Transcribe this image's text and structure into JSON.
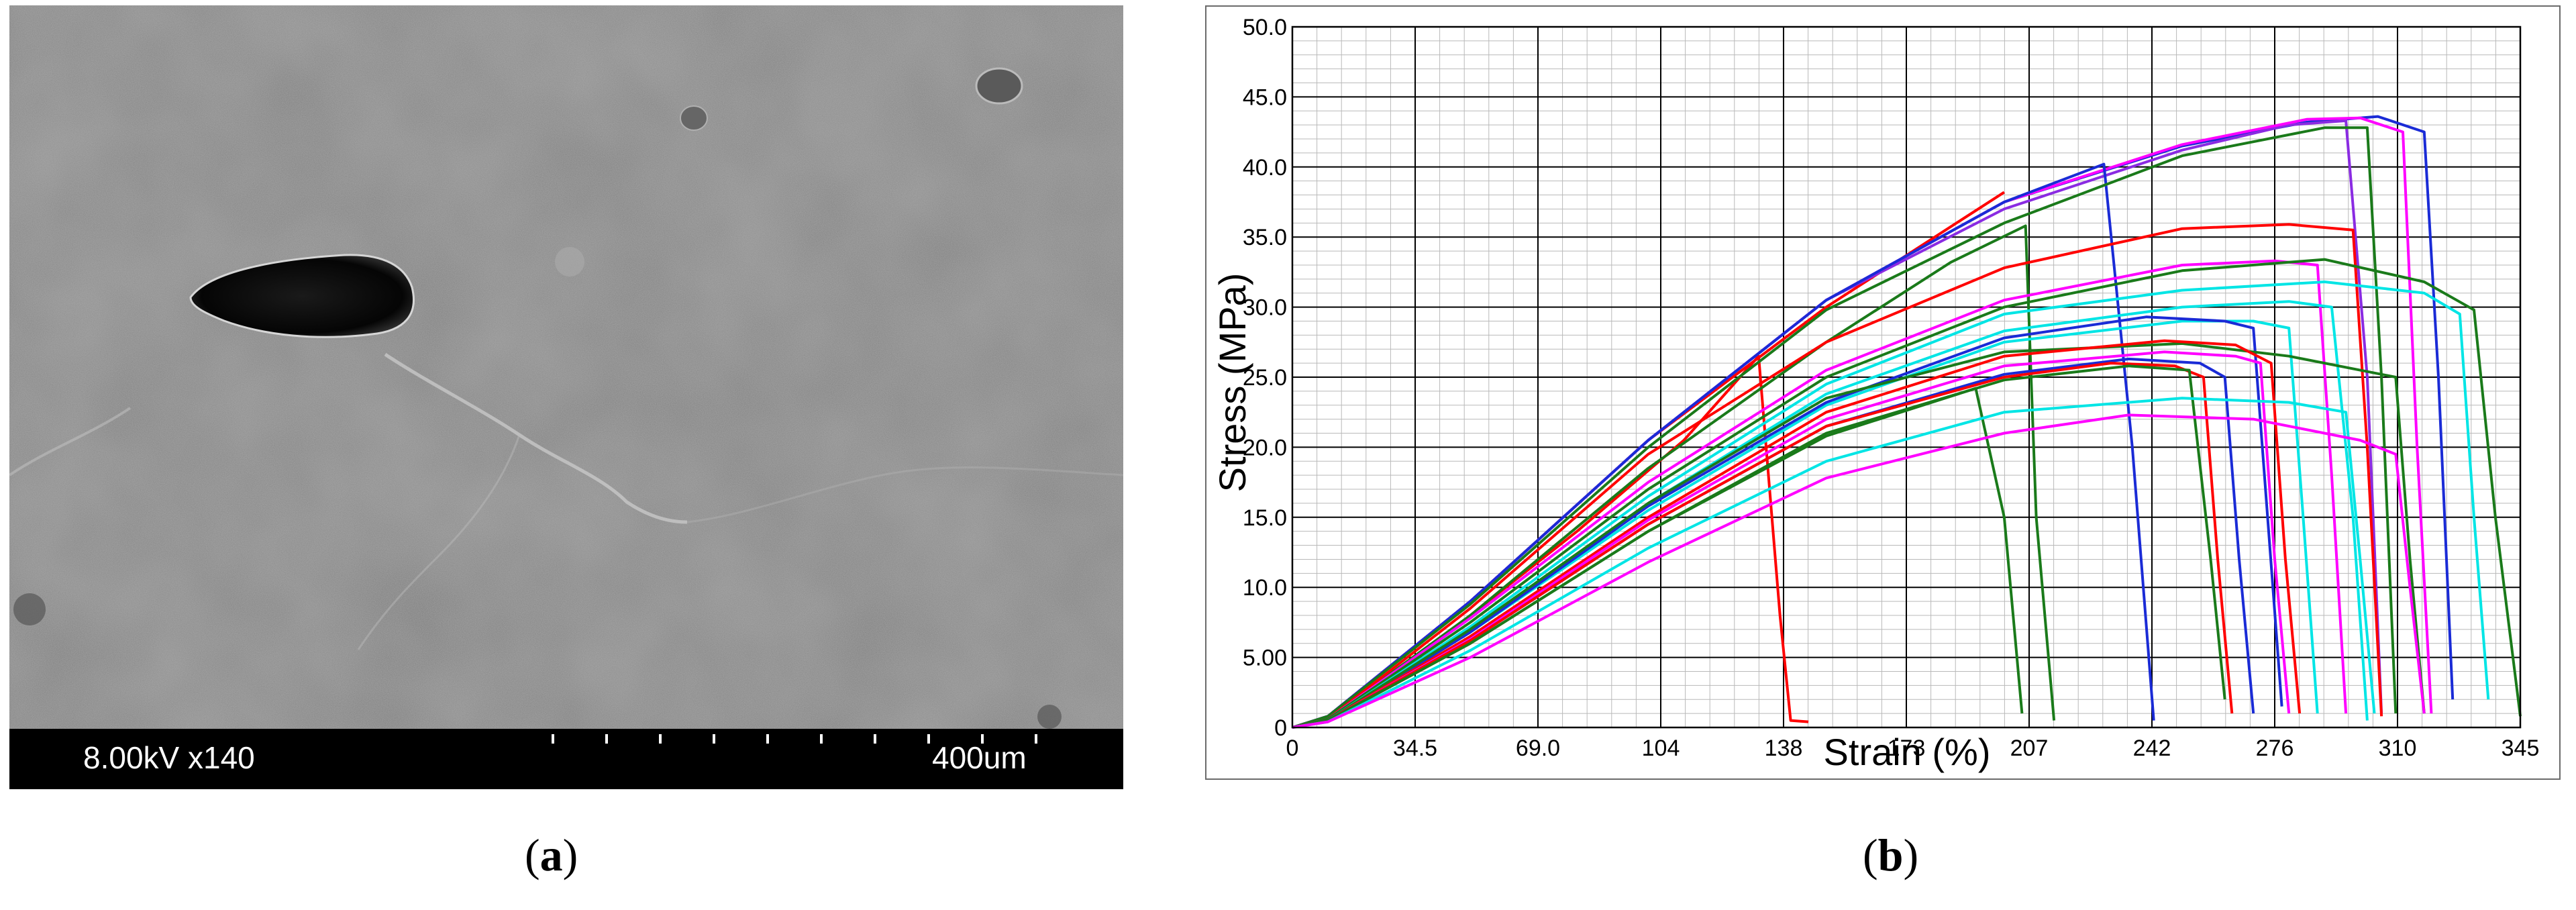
{
  "figure": {
    "panel_a": {
      "label_open": "(",
      "label_letter": "a",
      "label_close": ")",
      "sem": {
        "voltage_magnification": "8.00kV x140",
        "scale_bar": "400um",
        "background_color": "#7f7f7f",
        "databar_color": "#000000"
      }
    },
    "panel_b": {
      "label_open": "(",
      "label_letter": "b",
      "label_close": ")"
    }
  },
  "chart_data": {
    "type": "line",
    "xlabel": "Strain (%)",
    "ylabel": "Stress (MPa)",
    "xlim": [
      0,
      345
    ],
    "ylim": [
      0,
      50
    ],
    "x_ticks": [
      "0",
      "34.5",
      "69.0",
      "104",
      "138",
      "173",
      "207",
      "242",
      "276",
      "310",
      "345"
    ],
    "x_tick_values": [
      0,
      34.5,
      69,
      103.5,
      138,
      172.5,
      207,
      241.5,
      276,
      310.5,
      345
    ],
    "y_ticks": [
      "0",
      "5.00",
      "10.0",
      "15.0",
      "20.0",
      "25.0",
      "30.0",
      "35.0",
      "40.0",
      "45.0",
      "50.0"
    ],
    "y_tick_values": [
      0,
      5,
      10,
      15,
      20,
      25,
      30,
      35,
      40,
      45,
      50
    ],
    "grid": "on (major and minor)",
    "legend": "none",
    "series": [
      {
        "color": "#ff0000",
        "points": [
          [
            0,
            0
          ],
          [
            10,
            0.5
          ],
          [
            40,
            6.0
          ],
          [
            80,
            14.0
          ],
          [
            110,
            20.5
          ],
          [
            131,
            26.5
          ],
          [
            137,
            8.0
          ],
          [
            140,
            0.5
          ],
          [
            145,
            0.4
          ]
        ]
      },
      {
        "color": "#ff0000",
        "points": [
          [
            0,
            0
          ],
          [
            10,
            0.8
          ],
          [
            50,
            9.0
          ],
          [
            100,
            20.5
          ],
          [
            150,
            30.0
          ],
          [
            200,
            38.2
          ]
        ]
      },
      {
        "color": "#1a2bd6",
        "points": [
          [
            0,
            0
          ],
          [
            10,
            0.8
          ],
          [
            50,
            9.0
          ],
          [
            100,
            20.5
          ],
          [
            150,
            30.5
          ],
          [
            200,
            37.5
          ],
          [
            250,
            41.5
          ],
          [
            285,
            43.2
          ],
          [
            305,
            43.6
          ],
          [
            318,
            42.5
          ],
          [
            322,
            25.0
          ],
          [
            326,
            2.0
          ]
        ]
      },
      {
        "color": "#8a2be2",
        "points": [
          [
            0,
            0
          ],
          [
            10,
            0.8
          ],
          [
            50,
            9.0
          ],
          [
            100,
            20.5
          ],
          [
            150,
            30.5
          ],
          [
            200,
            37.0
          ],
          [
            250,
            41.2
          ],
          [
            280,
            43.0
          ],
          [
            296,
            43.3
          ],
          [
            302,
            25.0
          ],
          [
            306,
            1.0
          ]
        ]
      },
      {
        "color": "#ff00ff",
        "points": [
          [
            0,
            0
          ],
          [
            10,
            0.8
          ],
          [
            50,
            9.0
          ],
          [
            100,
            20.5
          ],
          [
            150,
            30.5
          ],
          [
            200,
            37.5
          ],
          [
            250,
            41.6
          ],
          [
            285,
            43.4
          ],
          [
            300,
            43.5
          ],
          [
            312,
            42.5
          ],
          [
            316,
            20.0
          ],
          [
            320,
            1.0
          ]
        ]
      },
      {
        "color": "#1a2bd6",
        "points": [
          [
            0,
            0
          ],
          [
            10,
            0.8
          ],
          [
            50,
            9.0
          ],
          [
            100,
            20.5
          ],
          [
            150,
            30.5
          ],
          [
            200,
            37.5
          ],
          [
            228,
            40.2
          ],
          [
            236,
            20.0
          ],
          [
            242,
            0.5
          ]
        ]
      },
      {
        "color": "#1a7a1a",
        "points": [
          [
            0,
            0
          ],
          [
            10,
            0.8
          ],
          [
            50,
            8.8
          ],
          [
            100,
            20.0
          ],
          [
            150,
            29.8
          ],
          [
            200,
            36.0
          ],
          [
            250,
            40.8
          ],
          [
            290,
            42.8
          ],
          [
            302,
            42.8
          ],
          [
            306,
            25.0
          ],
          [
            310,
            1.0
          ]
        ]
      },
      {
        "color": "#1a7a1a",
        "points": [
          [
            0,
            0
          ],
          [
            10,
            0.6
          ],
          [
            50,
            8.0
          ],
          [
            100,
            18.5
          ],
          [
            150,
            27.5
          ],
          [
            185,
            33.2
          ],
          [
            206,
            35.8
          ],
          [
            209,
            15.0
          ],
          [
            214,
            0.5
          ]
        ]
      },
      {
        "color": "#ff0000",
        "points": [
          [
            0,
            0
          ],
          [
            10,
            0.6
          ],
          [
            50,
            8.5
          ],
          [
            100,
            19.5
          ],
          [
            150,
            27.5
          ],
          [
            200,
            32.8
          ],
          [
            250,
            35.6
          ],
          [
            280,
            35.9
          ],
          [
            298,
            35.5
          ],
          [
            302,
            20.0
          ],
          [
            306,
            0.8
          ]
        ]
      },
      {
        "color": "#ff00ff",
        "points": [
          [
            0,
            0
          ],
          [
            10,
            0.6
          ],
          [
            50,
            7.8
          ],
          [
            100,
            17.5
          ],
          [
            150,
            25.5
          ],
          [
            200,
            30.5
          ],
          [
            250,
            33.0
          ],
          [
            276,
            33.3
          ],
          [
            288,
            33.0
          ],
          [
            292,
            18.0
          ],
          [
            296,
            1.0
          ]
        ]
      },
      {
        "color": "#1a7a1a",
        "points": [
          [
            0,
            0
          ],
          [
            10,
            0.6
          ],
          [
            50,
            7.5
          ],
          [
            100,
            17.0
          ],
          [
            150,
            25.0
          ],
          [
            200,
            30.0
          ],
          [
            250,
            32.6
          ],
          [
            290,
            33.4
          ],
          [
            318,
            31.8
          ],
          [
            332,
            29.8
          ],
          [
            338,
            15.0
          ],
          [
            345,
            0.8
          ]
        ]
      },
      {
        "color": "#00e5e5",
        "points": [
          [
            0,
            0
          ],
          [
            10,
            0.5
          ],
          [
            50,
            7.2
          ],
          [
            100,
            16.5
          ],
          [
            150,
            24.5
          ],
          [
            200,
            29.5
          ],
          [
            250,
            31.2
          ],
          [
            290,
            31.8
          ],
          [
            318,
            31.0
          ],
          [
            328,
            29.5
          ],
          [
            332,
            15.0
          ],
          [
            336,
            2.0
          ]
        ]
      },
      {
        "color": "#00e5e5",
        "points": [
          [
            0,
            0
          ],
          [
            10,
            0.5
          ],
          [
            50,
            7.0
          ],
          [
            100,
            16.0
          ],
          [
            150,
            23.8
          ],
          [
            200,
            28.3
          ],
          [
            250,
            30.0
          ],
          [
            280,
            30.4
          ],
          [
            292,
            30.0
          ],
          [
            298,
            15.0
          ],
          [
            302,
            0.5
          ]
        ]
      },
      {
        "color": "#00e5e5",
        "points": [
          [
            0,
            0
          ],
          [
            10,
            0.5
          ],
          [
            50,
            6.8
          ],
          [
            100,
            15.5
          ],
          [
            150,
            23.0
          ],
          [
            200,
            27.5
          ],
          [
            250,
            29.0
          ],
          [
            270,
            29.0
          ],
          [
            280,
            28.5
          ],
          [
            284,
            15.0
          ],
          [
            288,
            1.0
          ]
        ]
      },
      {
        "color": "#1a2bd6",
        "points": [
          [
            0,
            0
          ],
          [
            10,
            0.5
          ],
          [
            50,
            6.8
          ],
          [
            100,
            15.8
          ],
          [
            150,
            23.2
          ],
          [
            200,
            27.8
          ],
          [
            240,
            29.3
          ],
          [
            262,
            29.0
          ],
          [
            270,
            28.5
          ],
          [
            274,
            15.0
          ],
          [
            278,
            1.5
          ]
        ]
      },
      {
        "color": "#1a7a1a",
        "points": [
          [
            0,
            0
          ],
          [
            10,
            0.5
          ],
          [
            50,
            7.0
          ],
          [
            100,
            16.0
          ],
          [
            150,
            23.5
          ],
          [
            200,
            26.8
          ],
          [
            250,
            27.4
          ],
          [
            280,
            26.5
          ],
          [
            300,
            25.5
          ],
          [
            310,
            25.0
          ],
          [
            314,
            12.0
          ],
          [
            318,
            1.0
          ]
        ]
      },
      {
        "color": "#ff0000",
        "points": [
          [
            0,
            0
          ],
          [
            10,
            0.5
          ],
          [
            50,
            6.5
          ],
          [
            100,
            15.0
          ],
          [
            150,
            22.5
          ],
          [
            200,
            26.5
          ],
          [
            245,
            27.6
          ],
          [
            265,
            27.3
          ],
          [
            275,
            26.0
          ],
          [
            279,
            12.0
          ],
          [
            283,
            1.0
          ]
        ]
      },
      {
        "color": "#ff00ff",
        "points": [
          [
            0,
            0
          ],
          [
            10,
            0.5
          ],
          [
            50,
            6.3
          ],
          [
            100,
            14.8
          ],
          [
            150,
            22.0
          ],
          [
            200,
            25.8
          ],
          [
            245,
            26.8
          ],
          [
            265,
            26.5
          ],
          [
            272,
            26.0
          ],
          [
            276,
            12.0
          ],
          [
            280,
            1.0
          ]
        ]
      },
      {
        "color": "#1a2bd6",
        "points": [
          [
            0,
            0
          ],
          [
            10,
            0.5
          ],
          [
            50,
            6.2
          ],
          [
            100,
            14.5
          ],
          [
            150,
            21.5
          ],
          [
            200,
            25.2
          ],
          [
            235,
            26.3
          ],
          [
            255,
            26.0
          ],
          [
            262,
            25.0
          ],
          [
            266,
            12.0
          ],
          [
            270,
            1.0
          ]
        ]
      },
      {
        "color": "#ff0000",
        "points": [
          [
            0,
            0
          ],
          [
            10,
            0.5
          ],
          [
            50,
            6.2
          ],
          [
            100,
            14.5
          ],
          [
            150,
            21.5
          ],
          [
            200,
            25.0
          ],
          [
            230,
            26.0
          ],
          [
            248,
            25.8
          ],
          [
            256,
            25.0
          ],
          [
            260,
            12.0
          ],
          [
            264,
            1.0
          ]
        ]
      },
      {
        "color": "#1a7a1a",
        "points": [
          [
            0,
            0
          ],
          [
            10,
            0.5
          ],
          [
            50,
            6.0
          ],
          [
            100,
            14.0
          ],
          [
            150,
            21.0
          ],
          [
            200,
            24.8
          ],
          [
            235,
            25.8
          ],
          [
            252,
            25.5
          ],
          [
            258,
            12.0
          ],
          [
            262,
            2.0
          ]
        ]
      },
      {
        "color": "#1a7a1a",
        "points": [
          [
            0,
            0
          ],
          [
            10,
            0.5
          ],
          [
            50,
            6.0
          ],
          [
            100,
            14.0
          ],
          [
            150,
            20.8
          ],
          [
            192,
            24.2
          ],
          [
            200,
            15.0
          ],
          [
            205,
            1.0
          ]
        ]
      },
      {
        "color": "#00e5e5",
        "points": [
          [
            0,
            0
          ],
          [
            10,
            0.4
          ],
          [
            50,
            5.5
          ],
          [
            100,
            12.8
          ],
          [
            150,
            19.0
          ],
          [
            200,
            22.5
          ],
          [
            250,
            23.5
          ],
          [
            280,
            23.2
          ],
          [
            296,
            22.5
          ],
          [
            300,
            12.0
          ],
          [
            304,
            1.0
          ]
        ]
      },
      {
        "color": "#ff00ff",
        "points": [
          [
            0,
            0
          ],
          [
            10,
            0.4
          ],
          [
            50,
            5.0
          ],
          [
            100,
            11.8
          ],
          [
            150,
            17.8
          ],
          [
            200,
            21.0
          ],
          [
            235,
            22.3
          ],
          [
            270,
            22.0
          ],
          [
            300,
            20.5
          ],
          [
            310,
            19.5
          ],
          [
            314,
            10.0
          ],
          [
            318,
            1.0
          ]
        ]
      }
    ]
  }
}
